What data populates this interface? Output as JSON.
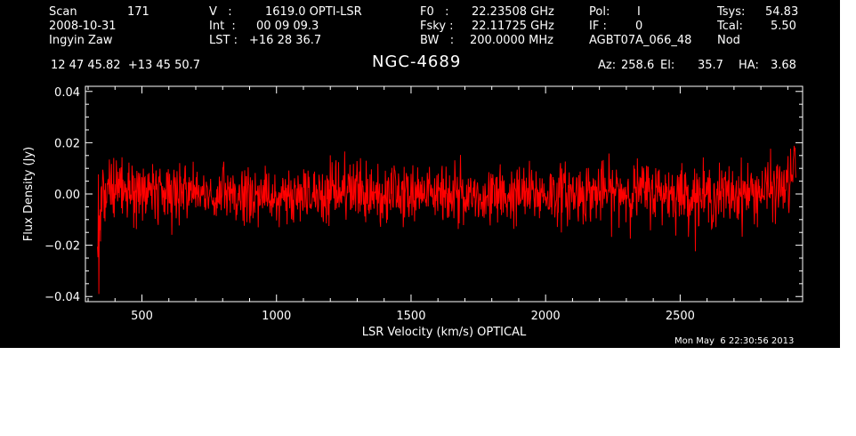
{
  "header": {
    "scan_label": "Scan",
    "scan_value": "171",
    "date": "2008-10-31",
    "observer": "Ingyin Zaw",
    "v_label": "V   :",
    "v_value": "1619.0 OPTI-LSR",
    "int_label": "Int  :",
    "int_value": "00 09 09.3",
    "lst_label": "LST :",
    "lst_value": "+16 28 36.7",
    "f0_label": "F0   :",
    "f0_value": "22.23508 GHz",
    "fsky_label": "Fsky :",
    "fsky_value": "22.11725 GHz",
    "bw_label": "BW   :",
    "bw_value": "200.0000 MHz",
    "pol_label": "Pol:",
    "pol_value": "I",
    "if_label": "IF :",
    "if_value": "0",
    "project": "AGBT07A_066_48",
    "tsys_label": "Tsys:",
    "tsys_value": "54.83",
    "tcal_label": "Tcal:",
    "tcal_value": "5.50",
    "mode": "Nod",
    "coords": "12 47 45.82  +13 45 50.7",
    "source": "NGC-4689",
    "az_label": "Az:",
    "az_value": "258.6",
    "el_label": "El:",
    "el_value": "35.7",
    "ha_label": "HA:",
    "ha_value": "3.68",
    "timestamp": "Mon May  6 22:30:56 2013"
  },
  "chart_data": {
    "type": "line",
    "title": "NGC-4689",
    "xlabel": "LSR Velocity (km/s) OPTICAL",
    "ylabel": "Flux Density (Jy)",
    "xlim": [
      290,
      2955
    ],
    "ylim": [
      -0.042,
      0.042
    ],
    "xticks": [
      500,
      1000,
      1500,
      2000,
      2500
    ],
    "xtick_labels": [
      "500",
      "1000",
      "1500",
      "2000",
      "2500"
    ],
    "yticks": [
      -0.04,
      -0.02,
      0.0,
      0.02,
      0.04
    ],
    "ytick_labels": [
      "−0.04",
      "−0.02",
      "0.00",
      "0.02",
      "0.04"
    ],
    "line_color": "#ff0000",
    "series": [
      {
        "x_start": 335,
        "x_end": 2930,
        "points": 1600,
        "noise_rms": 0.0058,
        "baseline": [
          [
            335,
            -0.015
          ],
          [
            345,
            -0.003
          ],
          [
            380,
            0.002
          ],
          [
            450,
            0.001
          ],
          [
            600,
            0.0005
          ],
          [
            800,
            0.0
          ],
          [
            1000,
            -0.0015
          ],
          [
            1200,
            0.0
          ],
          [
            1400,
            0.001
          ],
          [
            1600,
            0.0
          ],
          [
            1800,
            -0.001
          ],
          [
            2000,
            0.0
          ],
          [
            2200,
            0.0005
          ],
          [
            2400,
            0.001
          ],
          [
            2600,
            -0.001
          ],
          [
            2800,
            0.001
          ],
          [
            2900,
            0.003
          ],
          [
            2930,
            0.012
          ]
        ]
      }
    ]
  },
  "colors": {
    "background": "#000000",
    "foreground": "#ffffff",
    "trace": "#ff0000"
  }
}
